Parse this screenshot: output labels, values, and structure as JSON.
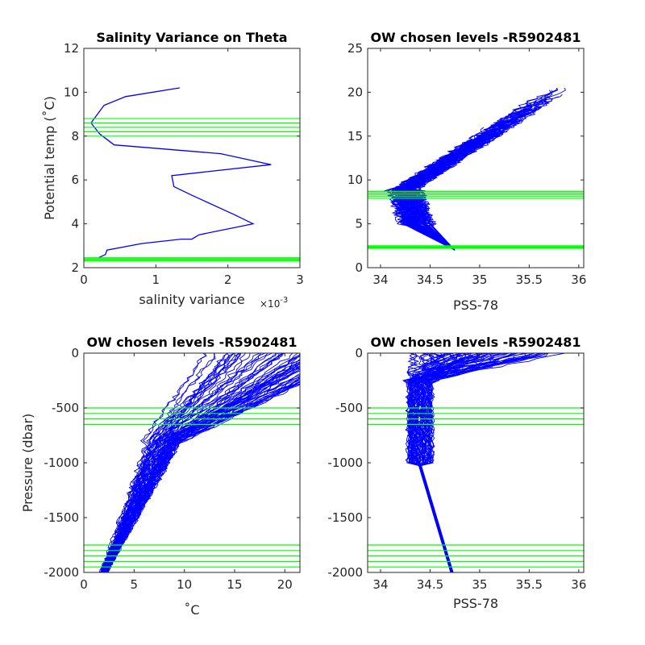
{
  "colors": {
    "profile": "#0000ff",
    "level": "#00ff00",
    "axis": "#262626"
  },
  "chart_data": [
    {
      "type": "line",
      "title": "Salinity Variance on Theta",
      "xlabel": "salinity variance",
      "x_exponent_base": "×10",
      "x_exponent_power": "-3",
      "ylabel": "Potential temp (˚C)",
      "xlim": [
        0,
        3
      ],
      "ylim": [
        2,
        12
      ],
      "xticks": [
        0,
        1,
        2,
        3
      ],
      "xtick_labels": [
        "0",
        "1",
        "2",
        "3"
      ],
      "yticks": [
        2,
        4,
        6,
        8,
        10,
        12
      ],
      "ytick_labels": [
        "2",
        "4",
        "6",
        "8",
        "10",
        "12"
      ],
      "series": [
        {
          "x": [
            1.33,
            0.58,
            0.28,
            0.1,
            0.22,
            0.42,
            1.9,
            2.6,
            1.22,
            1.25,
            1.5,
            2.1,
            2.35,
            1.6,
            1.5,
            1.35,
            0.8,
            0.32,
            0.3,
            0.2
          ],
          "y": [
            10.2,
            9.8,
            9.4,
            8.6,
            8.1,
            7.6,
            7.2,
            6.7,
            6.2,
            5.7,
            5.3,
            4.4,
            4.0,
            3.5,
            3.3,
            3.3,
            3.1,
            2.8,
            2.6,
            2.45
          ]
        }
      ],
      "level_lines": [
        2.3,
        2.35,
        2.4,
        2.45,
        8.0,
        8.2,
        8.4,
        8.6,
        8.8
      ]
    },
    {
      "type": "line",
      "title": "OW chosen levels -R5902481",
      "xlabel": "PSS-78",
      "ylabel": "",
      "xlim": [
        33.87,
        36.05
      ],
      "ylim": [
        0,
        25
      ],
      "xticks": [
        34,
        34.5,
        35,
        35.5,
        36
      ],
      "xtick_labels": [
        "34",
        "34.5",
        "35",
        "35.5",
        "36"
      ],
      "yticks": [
        0,
        5,
        10,
        15,
        20,
        25
      ],
      "ytick_labels": [
        "0",
        "5",
        "10",
        "15",
        "20",
        "25"
      ],
      "level_lines": [
        2.2,
        2.3,
        2.4,
        2.5,
        7.9,
        8.1,
        8.3,
        8.5,
        8.7
      ],
      "series_note": "many overlapping float profiles"
    },
    {
      "type": "line",
      "title": "OW chosen levels -R5902481",
      "xlabel": "˚C",
      "ylabel": "Pressure (dbar)",
      "xlim": [
        0,
        21.5
      ],
      "ylim": [
        -2000,
        0
      ],
      "xticks": [
        0,
        5,
        10,
        15,
        20
      ],
      "xtick_labels": [
        "0",
        "5",
        "10",
        "15",
        "20"
      ],
      "yticks": [
        0,
        -500,
        -1000,
        -1500,
        -2000
      ],
      "ytick_labels": [
        "0",
        "-500",
        "-1000",
        "-1500",
        "-2000"
      ],
      "level_lines": [
        -500,
        -550,
        -600,
        -650,
        -1750,
        -1800,
        -1850,
        -1900,
        -1950
      ],
      "series_note": "many overlapping float profiles"
    },
    {
      "type": "line",
      "title": "OW chosen levels -R5902481",
      "xlabel": "PSS-78",
      "ylabel": "",
      "xlim": [
        33.87,
        36.05
      ],
      "ylim": [
        -2000,
        0
      ],
      "xticks": [
        34,
        34.5,
        35,
        35.5,
        36
      ],
      "xtick_labels": [
        "34",
        "34.5",
        "35",
        "35.5",
        "36"
      ],
      "yticks": [
        0,
        -500,
        -1000,
        -1500,
        -2000
      ],
      "ytick_labels": [
        "0",
        "-500",
        "-1000",
        "-1500",
        "-2000"
      ],
      "level_lines": [
        -500,
        -550,
        -600,
        -650,
        -1750,
        -1800,
        -1850,
        -1900,
        -1950
      ],
      "series_note": "many overlapping float profiles"
    }
  ]
}
